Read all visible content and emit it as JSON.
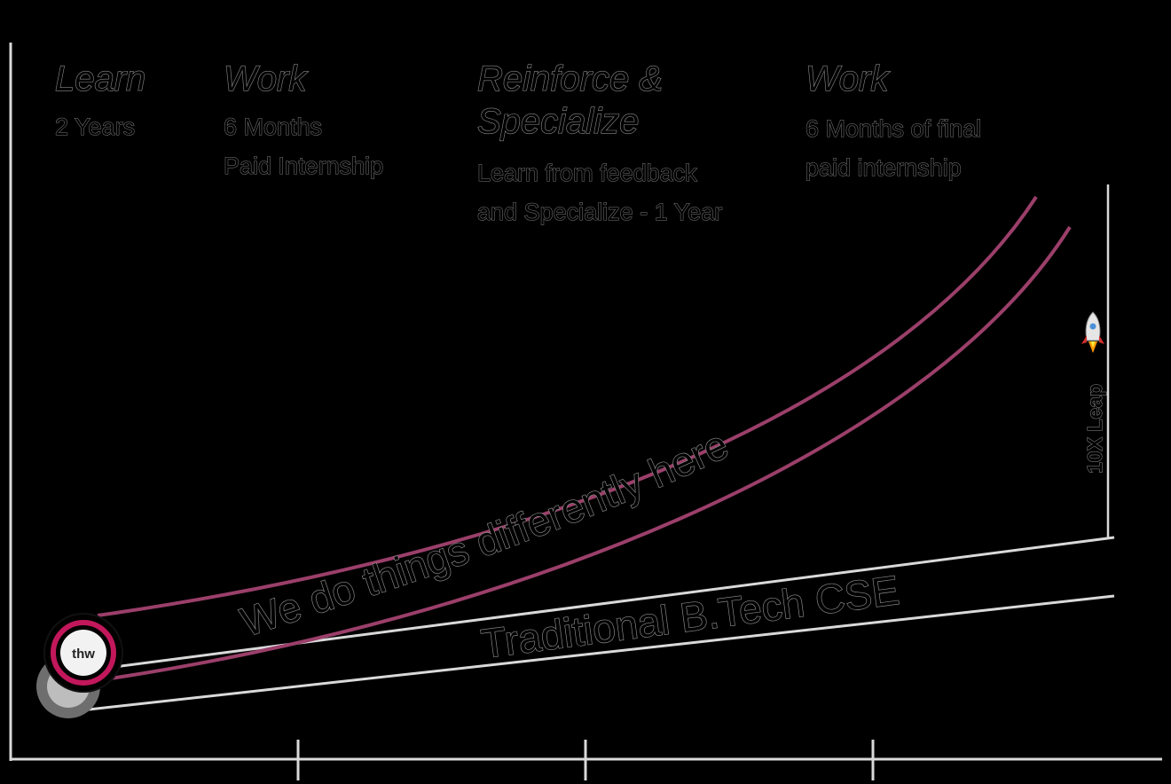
{
  "colors": {
    "background": "#000000",
    "axis": "#d9d9d9",
    "new_path": "#9b3f6a",
    "traditional_path": "#c8c8c8",
    "logo_ring": "#c2185b"
  },
  "stages": [
    {
      "title": "Learn",
      "lines": [
        "2 Years"
      ]
    },
    {
      "title": "Work",
      "lines": [
        "6 Months",
        "Paid Internship"
      ]
    },
    {
      "title_lines": [
        "Reinforce &",
        "Specialize"
      ],
      "lines": [
        "Learn from feedback",
        "and Specialize - 1 Year"
      ]
    },
    {
      "title": "Work",
      "lines": [
        "6 Months of final",
        "paid internship"
      ]
    }
  ],
  "curves": {
    "new_path_label": "We do things differently here",
    "traditional_label": "Traditional B.Tech CSE"
  },
  "leap": {
    "label": "10X Leap",
    "icon": "rocket-icon"
  },
  "logo": {
    "text": "thw",
    "icon": "brand-logo-icon"
  }
}
